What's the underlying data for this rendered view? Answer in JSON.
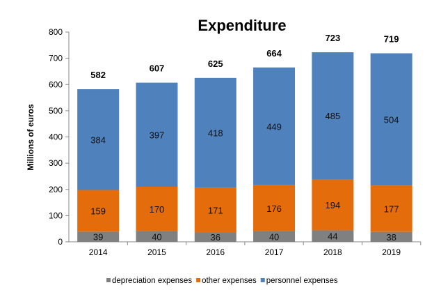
{
  "chart_data": {
    "type": "bar",
    "stacked": true,
    "title": "Expenditure",
    "xlabel": "",
    "ylabel": "Millions of euros",
    "ylim": [
      0,
      800
    ],
    "yticks": [
      0,
      100,
      200,
      300,
      400,
      500,
      600,
      700,
      800
    ],
    "categories": [
      "2014",
      "2015",
      "2016",
      "2017",
      "2018",
      "2019"
    ],
    "series": [
      {
        "name": "depreciation expenses",
        "color": "#808080",
        "values": [
          39,
          40,
          36,
          40,
          44,
          38
        ]
      },
      {
        "name": "other expenses",
        "color": "#e46c0a",
        "values": [
          159,
          170,
          171,
          176,
          194,
          177
        ]
      },
      {
        "name": "personnel expenses",
        "color": "#4f81bd",
        "values": [
          384,
          397,
          418,
          449,
          485,
          504
        ]
      }
    ],
    "totals": [
      582,
      607,
      625,
      664,
      723,
      719
    ],
    "grid": false,
    "legend": "bottom"
  }
}
